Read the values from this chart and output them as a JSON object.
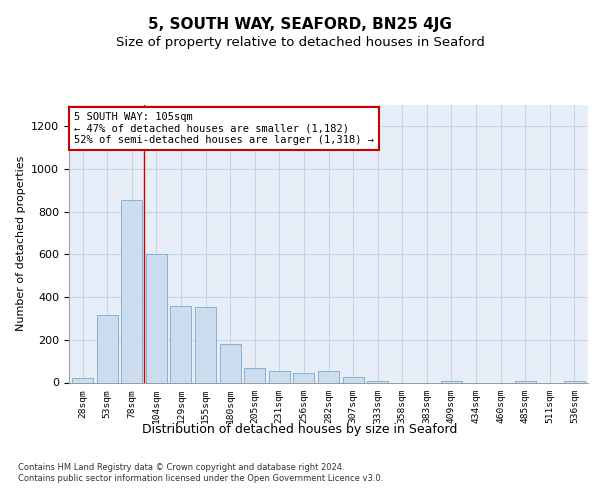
{
  "title": "5, SOUTH WAY, SEAFORD, BN25 4JG",
  "subtitle": "Size of property relative to detached houses in Seaford",
  "xlabel": "Distribution of detached houses by size in Seaford",
  "ylabel": "Number of detached properties",
  "categories": [
    "28sqm",
    "53sqm",
    "78sqm",
    "104sqm",
    "129sqm",
    "155sqm",
    "180sqm",
    "205sqm",
    "231sqm",
    "256sqm",
    "282sqm",
    "307sqm",
    "333sqm",
    "358sqm",
    "383sqm",
    "409sqm",
    "434sqm",
    "460sqm",
    "485sqm",
    "511sqm",
    "536sqm"
  ],
  "values": [
    20,
    315,
    855,
    600,
    360,
    355,
    180,
    70,
    55,
    45,
    55,
    28,
    5,
    0,
    0,
    5,
    0,
    0,
    5,
    0,
    5
  ],
  "bar_color": "#ccddf0",
  "bar_edge_color": "#7aaad0",
  "vline_color": "#cc0000",
  "vline_x_index": 2.5,
  "annotation_text": "5 SOUTH WAY: 105sqm\n← 47% of detached houses are smaller (1,182)\n52% of semi-detached houses are larger (1,318) →",
  "annotation_box_color": "#ffffff",
  "annotation_box_edge": "#cc0000",
  "ylim": [
    0,
    1300
  ],
  "yticks": [
    0,
    200,
    400,
    600,
    800,
    1000,
    1200
  ],
  "plot_bg_color": "#e8eef8",
  "grid_color": "#c8d4e4",
  "footer_line1": "Contains HM Land Registry data © Crown copyright and database right 2024.",
  "footer_line2": "Contains public sector information licensed under the Open Government Licence v3.0.",
  "title_fontsize": 11,
  "subtitle_fontsize": 9.5
}
